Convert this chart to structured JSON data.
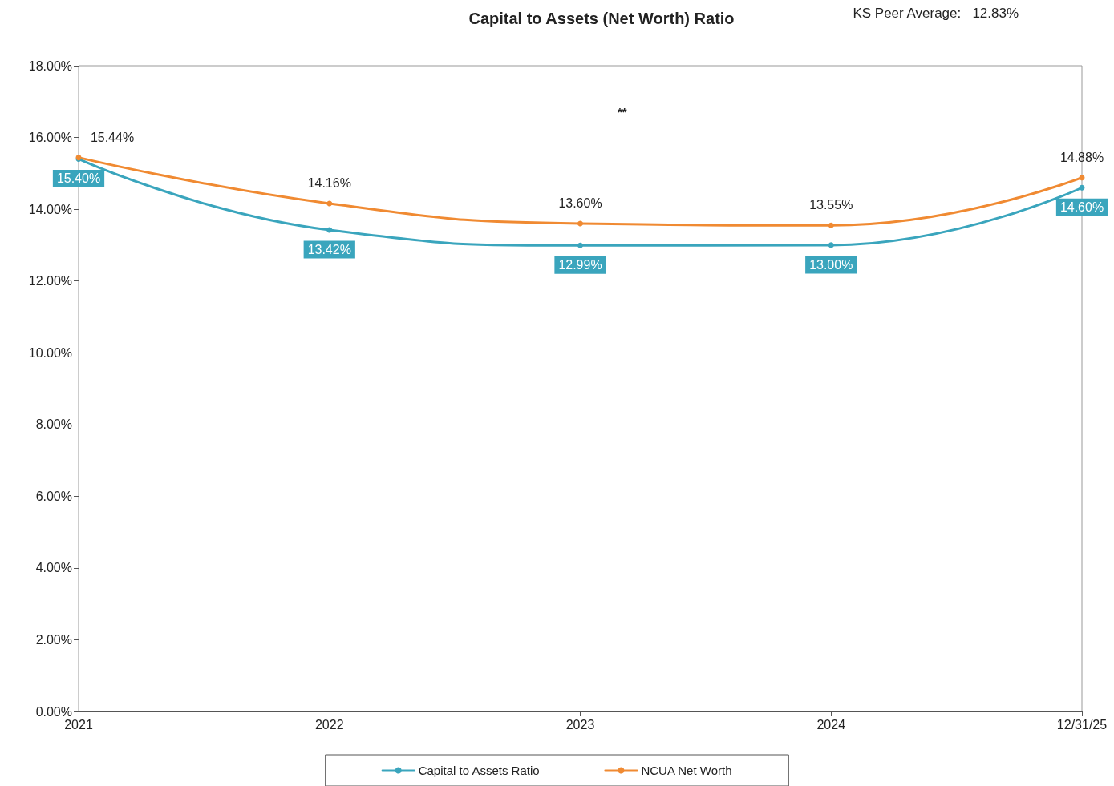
{
  "chart_data": {
    "type": "line",
    "title": "Capital to Assets (Net Worth) Ratio",
    "annotations": [
      "KS Peer Average:   12.83%",
      "**"
    ],
    "categories": [
      "2021",
      "2022",
      "2023",
      "2024",
      "12/31/25"
    ],
    "series": [
      {
        "name": "Capital to Assets Ratio",
        "color": "#3aa5bd",
        "values": [
          15.4,
          13.42,
          12.99,
          13.0,
          14.6
        ],
        "value_labels": [
          "15.40%",
          "13.42%",
          "12.99%",
          "13.00%",
          "14.60%"
        ]
      },
      {
        "name": "NCUA Net Worth",
        "color": "#f08a32",
        "values": [
          15.44,
          14.16,
          13.6,
          13.55,
          14.88
        ],
        "value_labels": [
          "15.44%",
          "14.16%",
          "13.60%",
          "13.55%",
          "14.88%"
        ]
      }
    ],
    "ylim": [
      0,
      18
    ],
    "yticks": [
      {
        "value": 0,
        "label": "0.00%"
      },
      {
        "value": 2,
        "label": "2.00%"
      },
      {
        "value": 4,
        "label": "4.00%"
      },
      {
        "value": 6,
        "label": "6.00%"
      },
      {
        "value": 8,
        "label": "8.00%"
      },
      {
        "value": 10,
        "label": "10.00%"
      },
      {
        "value": 12,
        "label": "12.00%"
      },
      {
        "value": 14,
        "label": "14.00%"
      },
      {
        "value": 16,
        "label": "16.00%"
      },
      {
        "value": 18,
        "label": "18.00%"
      }
    ],
    "grid": false,
    "legend": "bottom",
    "marker": "circle",
    "line_style": "solid"
  }
}
